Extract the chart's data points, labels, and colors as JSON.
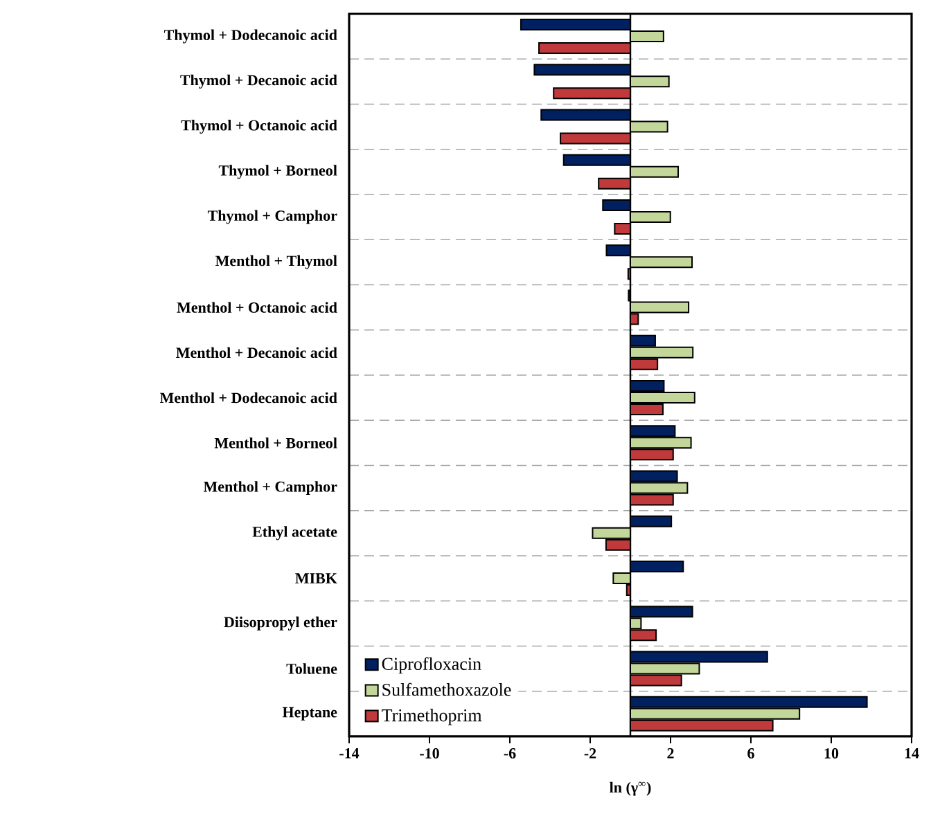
{
  "chart_data": {
    "type": "bar",
    "orientation": "horizontal",
    "xlabel": "ln (γ$^{∞}$)",
    "categories": [
      "Thymol + Dodecanoic acid",
      "Thymol + Decanoic acid",
      "Thymol + Octanoic acid",
      "Thymol + Borneol",
      "Thymol + Camphor",
      "Menthol + Thymol",
      "Menthol + Octanoic acid",
      "Menthol + Decanoic acid",
      "Menthol + Dodecanoic acid",
      "Menthol + Borneol",
      "Menthol + Camphor",
      "Ethyl acetate",
      "MIBK",
      "Diisopropyl ether",
      "Toluene",
      "Heptane"
    ],
    "series": [
      {
        "name": "Ciprofloxacin",
        "color": "#002060",
        "values": [
          -5.45,
          -4.78,
          -4.44,
          -3.32,
          -1.37,
          -1.19,
          -0.09,
          1.24,
          1.67,
          2.22,
          2.33,
          2.04,
          2.63,
          3.09,
          6.82,
          11.78
        ]
      },
      {
        "name": "Sulfamethoxazole",
        "color": "#c4d79b",
        "values": [
          1.65,
          1.92,
          1.85,
          2.38,
          1.99,
          3.07,
          2.9,
          3.11,
          3.2,
          3.02,
          2.84,
          -1.88,
          -0.85,
          0.53,
          3.43,
          8.42
        ]
      },
      {
        "name": "Trimethoprim",
        "color": "#c0393b",
        "values": [
          -4.55,
          -3.82,
          -3.48,
          -1.58,
          -0.78,
          -0.11,
          0.39,
          1.35,
          1.62,
          2.13,
          2.13,
          -1.21,
          -0.18,
          1.28,
          2.54,
          7.09
        ]
      }
    ],
    "xlim": [
      -14,
      14
    ],
    "xticks": [
      -14,
      -10,
      -6,
      -2,
      2,
      6,
      10,
      14
    ],
    "grid": "y",
    "legend": "bottom left"
  }
}
